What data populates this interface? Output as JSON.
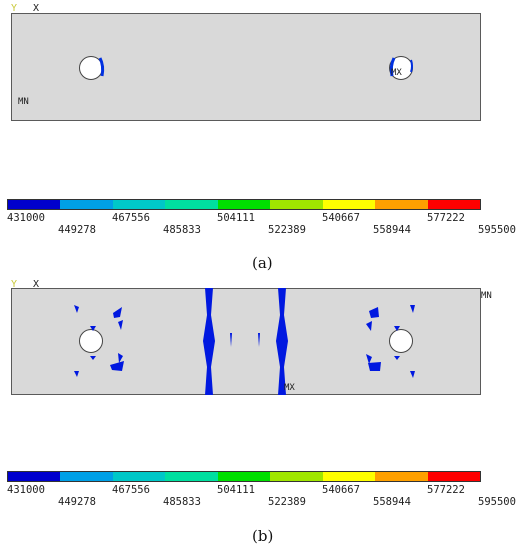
{
  "panels": [
    {
      "id": "a",
      "triad": {
        "y": "Y",
        "x": "X"
      },
      "min_label": "MN",
      "max_label": "MX",
      "caption": "(a)",
      "colorbar": {
        "colors": [
          "#0000cd",
          "#00a0e6",
          "#00c8c8",
          "#00e0a0",
          "#00e000",
          "#a0e600",
          "#ffff00",
          "#ffa000",
          "#ff0000"
        ],
        "ticks_top": [
          "431000",
          "467556",
          "504111",
          "540667",
          "577222"
        ],
        "ticks_bottom": [
          "449278",
          "485833",
          "522389",
          "558944",
          "595500"
        ]
      }
    },
    {
      "id": "b",
      "triad": {
        "y": "Y",
        "x": "X"
      },
      "min_label": "MN",
      "max_label": "MX",
      "caption": "(b)",
      "colorbar": {
        "colors": [
          "#0000cd",
          "#00a0e6",
          "#00c8c8",
          "#00e0a0",
          "#00e000",
          "#a0e600",
          "#ffff00",
          "#ffa000",
          "#ff0000"
        ],
        "ticks_top": [
          "431000",
          "467556",
          "504111",
          "540667",
          "577222"
        ],
        "ticks_bottom": [
          "449278",
          "485833",
          "522389",
          "558944",
          "595500"
        ]
      }
    }
  ]
}
